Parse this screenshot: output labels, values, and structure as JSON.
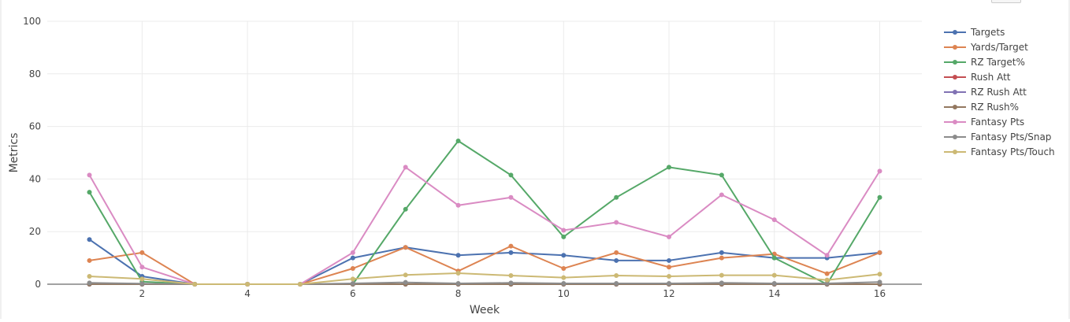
{
  "chart_data": {
    "type": "line",
    "xlabel": "Week",
    "ylabel": "Metrics",
    "xlim": [
      0.2,
      16.8
    ],
    "ylim": [
      0,
      100
    ],
    "xticks": [
      2,
      4,
      6,
      8,
      10,
      12,
      14,
      16
    ],
    "yticks": [
      0,
      20,
      40,
      60,
      80,
      100
    ],
    "grid": true,
    "legend": "top-right",
    "x": [
      1,
      2,
      3,
      4,
      5,
      6,
      7,
      8,
      9,
      10,
      11,
      12,
      13,
      14,
      15,
      16
    ],
    "series": [
      {
        "name": "Targets",
        "color": "#4c72b0",
        "values": [
          17,
          3,
          0,
          0,
          0,
          10,
          14,
          11,
          12,
          11,
          9,
          9,
          12,
          10,
          10,
          12
        ]
      },
      {
        "name": "Yards/Target",
        "color": "#dd8452",
        "values": [
          9,
          12,
          0,
          0,
          0,
          6,
          14,
          5,
          14.5,
          6,
          12,
          6.5,
          10,
          11.5,
          4,
          12
        ]
      },
      {
        "name": "RZ Target%",
        "color": "#55a868",
        "values": [
          35,
          1,
          0,
          0,
          0,
          0,
          28.5,
          54.5,
          41.5,
          18,
          33,
          44.5,
          41.5,
          10,
          0,
          33
        ]
      },
      {
        "name": "Rush Att",
        "color": "#c44e52",
        "values": [
          0,
          0,
          0,
          0,
          0,
          0,
          0,
          0,
          0,
          0,
          0,
          0,
          0,
          0,
          0,
          0
        ]
      },
      {
        "name": "RZ Rush Att",
        "color": "#8172b3",
        "values": [
          0,
          0,
          0,
          0,
          0,
          0,
          0,
          0,
          0,
          0,
          0,
          0,
          0,
          0,
          0,
          0
        ]
      },
      {
        "name": "RZ Rush%",
        "color": "#937860",
        "values": [
          0,
          0,
          0,
          0,
          0,
          0,
          0,
          0,
          0,
          0,
          0,
          0,
          0,
          0,
          0,
          0
        ]
      },
      {
        "name": "Fantasy Pts",
        "color": "#da8bc3",
        "values": [
          41.5,
          6.5,
          0,
          0,
          0,
          12,
          44.5,
          30,
          33,
          20.5,
          23.5,
          18,
          34,
          24.5,
          11,
          43
        ]
      },
      {
        "name": "Fantasy Pts/Snap",
        "color": "#8c8c8c",
        "values": [
          0.5,
          0.2,
          0,
          0,
          0,
          0.3,
          0.7,
          0.3,
          0.5,
          0.3,
          0.3,
          0.3,
          0.5,
          0.3,
          0.3,
          0.8
        ]
      },
      {
        "name": "Fantasy Pts/Touch",
        "color": "#ccb974",
        "values": [
          3,
          2,
          0,
          0,
          0,
          2,
          3.5,
          4.2,
          3.3,
          2.5,
          3.3,
          3,
          3.4,
          3.4,
          1.6,
          3.8
        ]
      }
    ]
  }
}
